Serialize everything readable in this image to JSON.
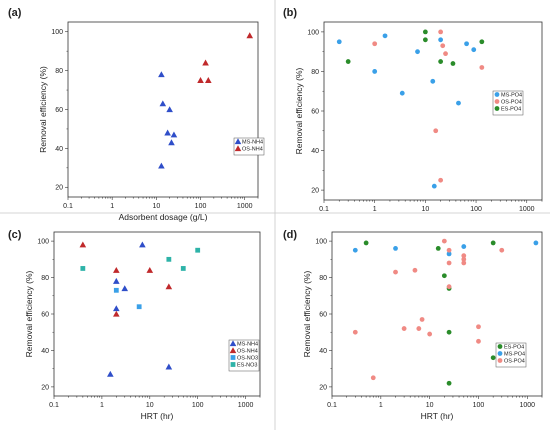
{
  "colors": {
    "blue": "#2f4ec9",
    "red": "#c0292b",
    "lightblue": "#3aa0e8",
    "salmon": "#f08a84",
    "green": "#2a8c2a",
    "teal": "#2eb3a8"
  },
  "chart_data": [
    {
      "panel": "(a)",
      "type": "scatter",
      "x_scale": "log",
      "xlim": [
        0.1,
        2000
      ],
      "x_ticks": [
        0.1,
        1,
        10,
        100,
        1000
      ],
      "x_tick_labels": [
        "0.1",
        "1",
        "10",
        "100",
        "1000"
      ],
      "ylim": [
        15,
        105
      ],
      "y_ticks": [
        20,
        40,
        60,
        80,
        100
      ],
      "y_tick_labels": [
        "20",
        "40",
        "60",
        "80",
        "100"
      ],
      "xlabel": "Adsorbent dosage (g/L)",
      "ylabel": "Removal efficiency (%)",
      "legend_position": "bottom-right",
      "series": [
        {
          "name": "MS-NH4",
          "marker": "triangle",
          "color": "#2f4ec9",
          "x": [
            13,
            14,
            18,
            20,
            22,
            25,
            13
          ],
          "y": [
            78,
            63,
            48,
            60,
            43,
            47,
            31
          ]
        },
        {
          "name": "OS-NH4",
          "marker": "triangle",
          "color": "#c0292b",
          "x": [
            100,
            130,
            150,
            1300
          ],
          "y": [
            75,
            84,
            75,
            98
          ]
        }
      ]
    },
    {
      "panel": "(b)",
      "type": "scatter",
      "x_scale": "log",
      "xlim": [
        0.1,
        2000
      ],
      "x_ticks": [
        0.1,
        1,
        10,
        100,
        1000
      ],
      "x_tick_labels": [
        "0.1",
        "1",
        "10",
        "100",
        "1000"
      ],
      "ylim": [
        15,
        105
      ],
      "y_ticks": [
        20,
        40,
        60,
        80,
        100
      ],
      "y_tick_labels": [
        "20",
        "40",
        "60",
        "80",
        "100"
      ],
      "xlabel": "",
      "ylabel": "Removal efficiency (%)",
      "legend_position": "center-right",
      "series": [
        {
          "name": "MS-PO4",
          "marker": "circle",
          "color": "#3aa0e8",
          "x": [
            0.2,
            1,
            1.6,
            3.5,
            7,
            14,
            20,
            45,
            65,
            90,
            15
          ],
          "y": [
            95,
            80,
            98,
            69,
            90,
            75,
            96,
            64,
            94,
            91,
            22
          ]
        },
        {
          "name": "OS-PO4",
          "marker": "circle",
          "color": "#f08a84",
          "x": [
            1,
            16,
            20,
            22,
            25,
            130,
            20
          ],
          "y": [
            94,
            50,
            100,
            93,
            89,
            82,
            25
          ]
        },
        {
          "name": "ES-PO4",
          "marker": "circle",
          "color": "#2a8c2a",
          "x": [
            0.3,
            10,
            10,
            20,
            35,
            130
          ],
          "y": [
            85,
            100,
            96,
            85,
            84,
            95
          ]
        }
      ]
    },
    {
      "panel": "(c)",
      "type": "scatter",
      "x_scale": "log",
      "xlim": [
        0.1,
        2000
      ],
      "x_ticks": [
        0.1,
        1,
        10,
        100,
        1000
      ],
      "x_tick_labels": [
        "0.1",
        "1",
        "10",
        "100",
        "1000"
      ],
      "ylim": [
        15,
        105
      ],
      "y_ticks": [
        20,
        40,
        60,
        80,
        100
      ],
      "y_tick_labels": [
        "20",
        "40",
        "60",
        "80",
        "100"
      ],
      "xlabel": "HRT (hr)",
      "ylabel": "Removal efficiency (%)",
      "legend_position": "bottom-right",
      "series": [
        {
          "name": "MS-NH4",
          "marker": "triangle",
          "color": "#2f4ec9",
          "x": [
            2,
            2,
            3,
            7,
            25,
            1.5
          ],
          "y": [
            78,
            63,
            74,
            98,
            31,
            27
          ]
        },
        {
          "name": "OS-NH4",
          "marker": "triangle",
          "color": "#c0292b",
          "x": [
            0.4,
            2,
            2,
            10,
            25
          ],
          "y": [
            98,
            84,
            60,
            84,
            75
          ]
        },
        {
          "name": "OS-NO3",
          "marker": "square",
          "color": "#3aa0e8",
          "x": [
            2,
            6
          ],
          "y": [
            73,
            64
          ]
        },
        {
          "name": "ES-NO3",
          "marker": "square",
          "color": "#2eb3a8",
          "x": [
            0.4,
            25,
            50,
            100
          ],
          "y": [
            85,
            90,
            85,
            95
          ]
        }
      ]
    },
    {
      "panel": "(d)",
      "type": "scatter",
      "x_scale": "log",
      "xlim": [
        0.1,
        2000
      ],
      "x_ticks": [
        0.1,
        1,
        10,
        100,
        1000
      ],
      "x_tick_labels": [
        "0.1",
        "1",
        "10",
        "100",
        "1000"
      ],
      "ylim": [
        15,
        105
      ],
      "y_ticks": [
        20,
        40,
        60,
        80,
        100
      ],
      "y_tick_labels": [
        "20",
        "40",
        "60",
        "80",
        "100"
      ],
      "xlabel": "HRT (hr)",
      "ylabel": "Removal efficiency (%)",
      "legend_position": "bottom-right",
      "series": [
        {
          "name": "ES-PO4",
          "marker": "circle",
          "color": "#2a8c2a",
          "x": [
            0.5,
            15,
            20,
            25,
            25,
            25,
            200,
            200
          ],
          "y": [
            99,
            96,
            81,
            74,
            50,
            22,
            99,
            36
          ]
        },
        {
          "name": "MS-PO4",
          "marker": "circle",
          "color": "#3aa0e8",
          "x": [
            0.3,
            2,
            25,
            50,
            1500
          ],
          "y": [
            95,
            96,
            93,
            97,
            99
          ]
        },
        {
          "name": "OS-PO4",
          "marker": "circle",
          "color": "#f08a84",
          "x": [
            0.3,
            0.7,
            2,
            3,
            5,
            6,
            7,
            10,
            20,
            25,
            25,
            25,
            50,
            50,
            50,
            100,
            100,
            300
          ],
          "y": [
            50,
            25,
            83,
            52,
            84,
            52,
            57,
            49,
            100,
            95,
            88,
            75,
            92,
            90,
            88,
            53,
            45,
            95
          ]
        }
      ]
    }
  ]
}
